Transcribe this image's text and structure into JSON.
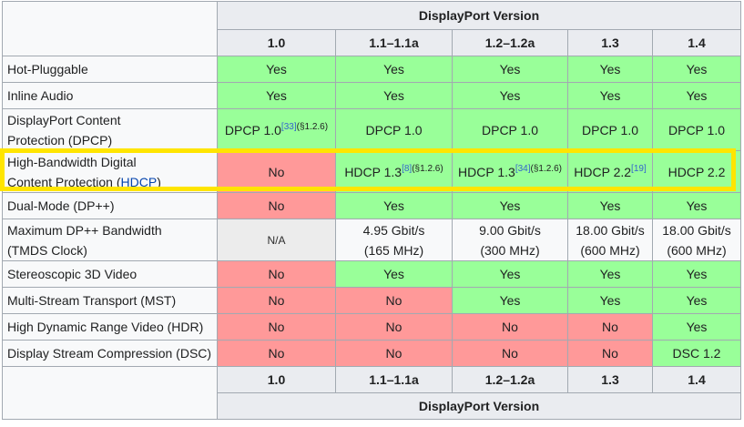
{
  "header": {
    "group_label": "DisplayPort Version",
    "versions": [
      "1.0",
      "1.1–1.1a",
      "1.2–1.2a",
      "1.3",
      "1.4"
    ]
  },
  "rows": [
    {
      "label": "Hot-Pluggable",
      "cells": [
        {
          "text": "Yes",
          "status": "yes"
        },
        {
          "text": "Yes",
          "status": "yes"
        },
        {
          "text": "Yes",
          "status": "yes"
        },
        {
          "text": "Yes",
          "status": "yes"
        },
        {
          "text": "Yes",
          "status": "yes"
        }
      ]
    },
    {
      "label": "Inline Audio",
      "cells": [
        {
          "text": "Yes",
          "status": "yes"
        },
        {
          "text": "Yes",
          "status": "yes"
        },
        {
          "text": "Yes",
          "status": "yes"
        },
        {
          "text": "Yes",
          "status": "yes"
        },
        {
          "text": "Yes",
          "status": "yes"
        }
      ]
    },
    {
      "label_line1": "DisplayPort Content",
      "label_line2": "Protection (DPCP)",
      "cells": [
        {
          "text": "DPCP 1.0",
          "ref": "[33]",
          "note": "(§1.2.6)",
          "status": "yes"
        },
        {
          "text": "DPCP 1.0",
          "status": "yes"
        },
        {
          "text": "DPCP 1.0",
          "status": "yes"
        },
        {
          "text": "DPCP 1.0",
          "status": "yes"
        },
        {
          "text": "DPCP 1.0",
          "status": "yes"
        }
      ]
    },
    {
      "label_line1": "High-Bandwidth Digital",
      "label_line2_pre": "Content Protection (",
      "label_link": "HDCP",
      "label_line2_post": ")",
      "cells": [
        {
          "text": "No",
          "status": "no"
        },
        {
          "text": "HDCP 1.3",
          "ref": "[8]",
          "note": "(§1.2.6)",
          "status": "yes"
        },
        {
          "text": "HDCP 1.3",
          "ref": "[34]",
          "note": "(§1.2.6)",
          "status": "yes"
        },
        {
          "text": "HDCP 2.2",
          "ref": "[19]",
          "status": "yes"
        },
        {
          "text": "HDCP 2.2",
          "status": "yes"
        }
      ]
    },
    {
      "label": "Dual-Mode (DP++)",
      "cells": [
        {
          "text": "No",
          "status": "no"
        },
        {
          "text": "Yes",
          "status": "yes"
        },
        {
          "text": "Yes",
          "status": "yes"
        },
        {
          "text": "Yes",
          "status": "yes"
        },
        {
          "text": "Yes",
          "status": "yes"
        }
      ]
    },
    {
      "label_line1": "Maximum DP++ Bandwidth",
      "label_line2": "(TMDS Clock)",
      "cells": [
        {
          "text": "N/A",
          "status": "na"
        },
        {
          "text": "4.95 Gbit/s",
          "text2": "(165 MHz)",
          "status": "plain"
        },
        {
          "text": "9.00 Gbit/s",
          "text2": "(300 MHz)",
          "status": "plain"
        },
        {
          "text": "18.00 Gbit/s",
          "text2": "(600 MHz)",
          "status": "plain"
        },
        {
          "text": "18.00 Gbit/s",
          "text2": "(600 MHz)",
          "status": "plain"
        }
      ]
    },
    {
      "label": "Stereoscopic 3D Video",
      "cells": [
        {
          "text": "No",
          "status": "no"
        },
        {
          "text": "Yes",
          "status": "yes"
        },
        {
          "text": "Yes",
          "status": "yes"
        },
        {
          "text": "Yes",
          "status": "yes"
        },
        {
          "text": "Yes",
          "status": "yes"
        }
      ]
    },
    {
      "label": "Multi-Stream Transport (MST)",
      "cells": [
        {
          "text": "No",
          "status": "no"
        },
        {
          "text": "No",
          "status": "no"
        },
        {
          "text": "Yes",
          "status": "yes"
        },
        {
          "text": "Yes",
          "status": "yes"
        },
        {
          "text": "Yes",
          "status": "yes"
        }
      ]
    },
    {
      "label": "High Dynamic Range Video (HDR)",
      "cells": [
        {
          "text": "No",
          "status": "no"
        },
        {
          "text": "No",
          "status": "no"
        },
        {
          "text": "No",
          "status": "no"
        },
        {
          "text": "No",
          "status": "no"
        },
        {
          "text": "Yes",
          "status": "yes"
        }
      ]
    },
    {
      "label": "Display Stream Compression (DSC)",
      "cells": [
        {
          "text": "No",
          "status": "no"
        },
        {
          "text": "No",
          "status": "no"
        },
        {
          "text": "No",
          "status": "no"
        },
        {
          "text": "No",
          "status": "no"
        },
        {
          "text": "DSC 1.2",
          "status": "yes"
        }
      ]
    }
  ],
  "colors": {
    "yes": "#99ff99",
    "no": "#ff9999",
    "na": "#ececec",
    "highlight_border": "#ffe500"
  }
}
